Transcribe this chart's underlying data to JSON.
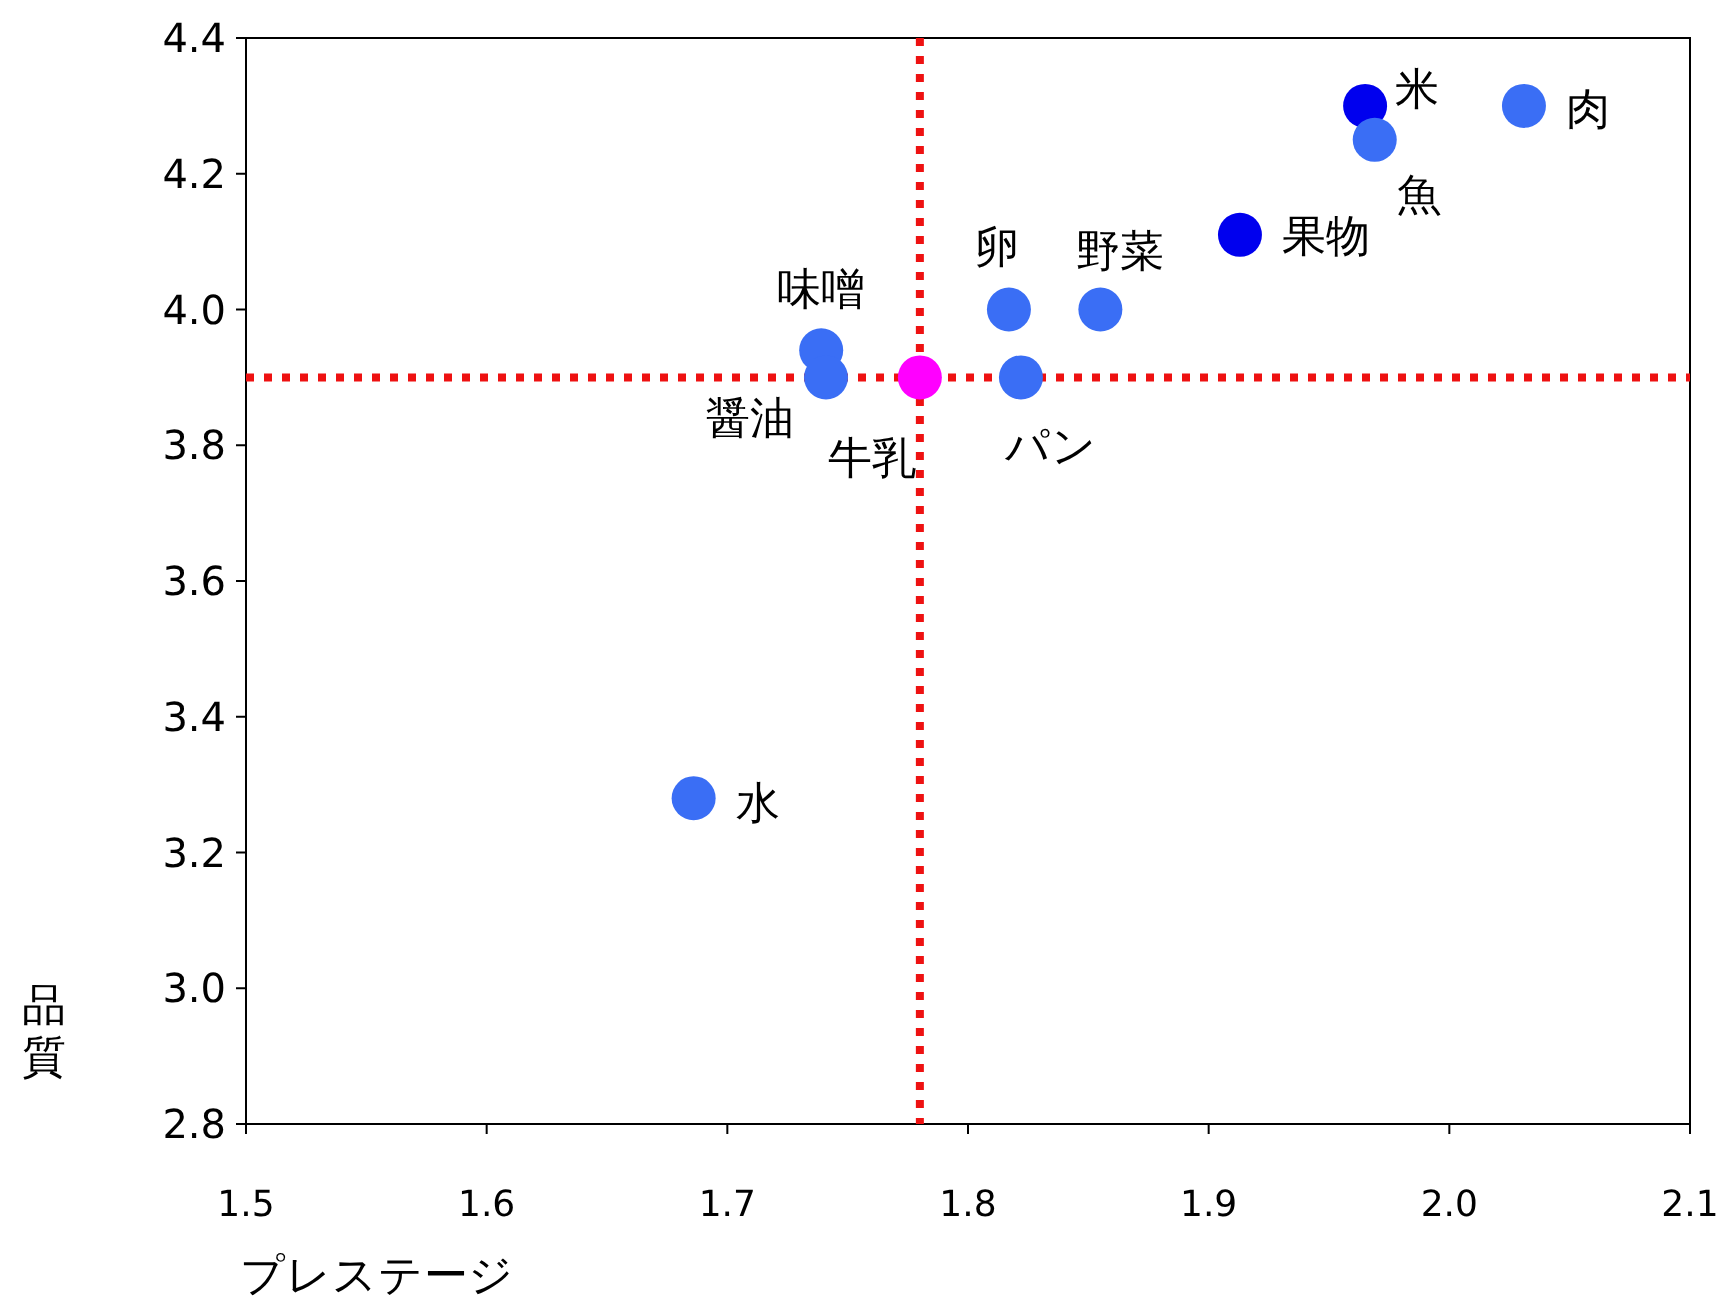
{
  "chart_data": {
    "type": "scatter",
    "xlabel": "プレステージ",
    "ylabel": "品質",
    "xlim": [
      1.5,
      2.1
    ],
    "xticks": [
      1.5,
      1.6,
      1.7,
      1.8,
      1.9,
      {
        "value": 2.0,
        "label": "2.0"
      },
      2.1
    ],
    "ylim": [
      2.8,
      4.4
    ],
    "yticks": [
      2.8,
      {
        "value": 3.0,
        "label": "3.0"
      },
      3.2,
      3.4,
      3.6,
      3.8,
      {
        "value": 4.0,
        "label": "4.0"
      },
      4.2,
      4.4
    ],
    "grid": false,
    "marker": "circle",
    "series": [
      {
        "x": [
          1.686,
          1.739,
          1.741,
          1.78,
          1.817,
          1.822,
          1.855,
          1.913,
          1.965,
          1.969,
          2.031
        ],
        "values": [
          3.28,
          3.94,
          3.9,
          3.9,
          4.0,
          3.9,
          4.0,
          4.11,
          4.3,
          4.25,
          4.3
        ],
        "colors": [
          "#3a6ef5",
          "#3a6ef5",
          "#3a6ef5",
          "#ff00ff",
          "#3a6ef5",
          "#3a6ef5",
          "#3a6ef5",
          "#0000ee",
          "#0000ee",
          "#3a6ef5",
          "#3a6ef5"
        ]
      }
    ],
    "ref_lines": [
      {
        "axis": "x",
        "value": 1.78,
        "color": "#ee1111",
        "line_style": "dotted"
      },
      {
        "axis": "y",
        "value": 3.9,
        "color": "#ee1111",
        "line_style": "dotted"
      }
    ],
    "annotations": [
      {
        "text": "水",
        "x": 1.686,
        "y": 3.28
      },
      {
        "text": "味噌",
        "x": 1.739,
        "y": 3.94
      },
      {
        "text": "醤油",
        "x": 1.741,
        "y": 3.9
      },
      {
        "text": "牛乳",
        "x": 1.78,
        "y": 3.9
      },
      {
        "text": "卵",
        "x": 1.817,
        "y": 4.0
      },
      {
        "text": "パン",
        "x": 1.822,
        "y": 3.9
      },
      {
        "text": "野菜",
        "x": 1.855,
        "y": 4.0
      },
      {
        "text": "果物",
        "x": 1.913,
        "y": 4.11
      },
      {
        "text": "米",
        "x": 1.965,
        "y": 4.3
      },
      {
        "text": "魚",
        "x": 1.969,
        "y": 4.25
      },
      {
        "text": "肉",
        "x": 2.031,
        "y": 4.3
      }
    ]
  }
}
